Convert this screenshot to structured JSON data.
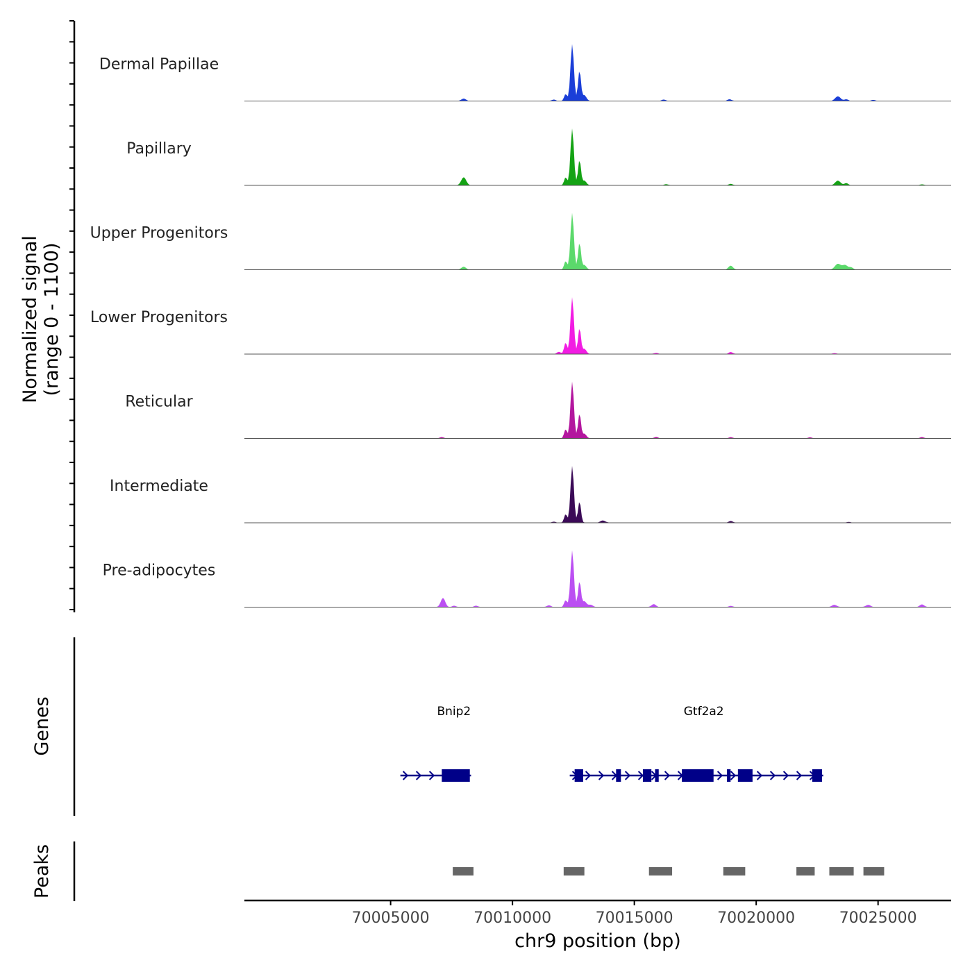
{
  "chart_data": {
    "type": "area",
    "title": "",
    "ylabel_line1": "Normalized signal",
    "ylabel_line2": "(range 0 - 1100)",
    "xlabel": "chr9 position (bp)",
    "xlim": [
      69999000,
      70028000
    ],
    "ylim": [
      0,
      1100
    ],
    "xticks": [
      70005000,
      70010000,
      70015000,
      70020000,
      70025000
    ],
    "xtick_labels": [
      "70005000",
      "70010000",
      "70015000",
      "70020000",
      "70025000"
    ],
    "tracks": [
      {
        "name": "Dermal Papillae",
        "color": "#1a3ed8",
        "peaks": [
          {
            "x": 70012450,
            "height": 1000,
            "width": 70
          },
          {
            "x": 70012750,
            "height": 540,
            "width": 60
          },
          {
            "x": 70012180,
            "height": 120,
            "width": 60
          },
          {
            "x": 70012950,
            "height": 100,
            "width": 80
          },
          {
            "x": 70008000,
            "height": 40,
            "width": 90
          },
          {
            "x": 70011700,
            "height": 25,
            "width": 80
          },
          {
            "x": 70016200,
            "height": 25,
            "width": 80
          },
          {
            "x": 70018900,
            "height": 30,
            "width": 80
          },
          {
            "x": 70023350,
            "height": 80,
            "width": 110
          },
          {
            "x": 70023700,
            "height": 30,
            "width": 80
          },
          {
            "x": 70024800,
            "height": 20,
            "width": 80
          }
        ]
      },
      {
        "name": "Papillary",
        "color": "#14a314",
        "peaks": [
          {
            "x": 70012450,
            "height": 1000,
            "width": 70
          },
          {
            "x": 70012750,
            "height": 450,
            "width": 60
          },
          {
            "x": 70012180,
            "height": 140,
            "width": 60
          },
          {
            "x": 70012950,
            "height": 80,
            "width": 80
          },
          {
            "x": 70008000,
            "height": 140,
            "width": 100
          },
          {
            "x": 70016300,
            "height": 20,
            "width": 80
          },
          {
            "x": 70018950,
            "height": 25,
            "width": 80
          },
          {
            "x": 70023350,
            "height": 80,
            "width": 110
          },
          {
            "x": 70023700,
            "height": 40,
            "width": 80
          },
          {
            "x": 70026800,
            "height": 15,
            "width": 80
          }
        ]
      },
      {
        "name": "Upper Progenitors",
        "color": "#5bd96b",
        "peaks": [
          {
            "x": 70012450,
            "height": 1000,
            "width": 70
          },
          {
            "x": 70012750,
            "height": 480,
            "width": 60
          },
          {
            "x": 70012180,
            "height": 150,
            "width": 60
          },
          {
            "x": 70012950,
            "height": 80,
            "width": 80
          },
          {
            "x": 70008000,
            "height": 50,
            "width": 90
          },
          {
            "x": 70018950,
            "height": 70,
            "width": 90
          },
          {
            "x": 70023350,
            "height": 100,
            "width": 120
          },
          {
            "x": 70023650,
            "height": 80,
            "width": 110
          },
          {
            "x": 70023900,
            "height": 40,
            "width": 80
          }
        ]
      },
      {
        "name": "Lower Progenitors",
        "color": "#f21ce3",
        "peaks": [
          {
            "x": 70012450,
            "height": 1000,
            "width": 70
          },
          {
            "x": 70012750,
            "height": 460,
            "width": 60
          },
          {
            "x": 70012180,
            "height": 200,
            "width": 60
          },
          {
            "x": 70012950,
            "height": 90,
            "width": 80
          },
          {
            "x": 70011900,
            "height": 40,
            "width": 80
          },
          {
            "x": 70015900,
            "height": 20,
            "width": 80
          },
          {
            "x": 70018950,
            "height": 35,
            "width": 80
          },
          {
            "x": 70023200,
            "height": 15,
            "width": 80
          }
        ]
      },
      {
        "name": "Reticular",
        "color": "#b3169e",
        "peaks": [
          {
            "x": 70012450,
            "height": 1000,
            "width": 70
          },
          {
            "x": 70012750,
            "height": 440,
            "width": 60
          },
          {
            "x": 70012180,
            "height": 160,
            "width": 60
          },
          {
            "x": 70012950,
            "height": 80,
            "width": 80
          },
          {
            "x": 70007100,
            "height": 20,
            "width": 80
          },
          {
            "x": 70015900,
            "height": 25,
            "width": 80
          },
          {
            "x": 70018950,
            "height": 20,
            "width": 80
          },
          {
            "x": 70022200,
            "height": 20,
            "width": 80
          },
          {
            "x": 70026800,
            "height": 20,
            "width": 80
          }
        ]
      },
      {
        "name": "Intermediate",
        "color": "#3b0a57",
        "peaks": [
          {
            "x": 70012450,
            "height": 1000,
            "width": 70
          },
          {
            "x": 70012750,
            "height": 380,
            "width": 60
          },
          {
            "x": 70012180,
            "height": 150,
            "width": 60
          },
          {
            "x": 70013700,
            "height": 40,
            "width": 100
          },
          {
            "x": 70011700,
            "height": 20,
            "width": 80
          },
          {
            "x": 70018950,
            "height": 30,
            "width": 80
          },
          {
            "x": 70023800,
            "height": 15,
            "width": 80
          }
        ]
      },
      {
        "name": "Pre-adipocytes",
        "color": "#bb4ff2",
        "peaks": [
          {
            "x": 70012450,
            "height": 1000,
            "width": 70
          },
          {
            "x": 70012750,
            "height": 460,
            "width": 60
          },
          {
            "x": 70012180,
            "height": 120,
            "width": 60
          },
          {
            "x": 70012950,
            "height": 100,
            "width": 80
          },
          {
            "x": 70007150,
            "height": 160,
            "width": 90
          },
          {
            "x": 70007600,
            "height": 25,
            "width": 80
          },
          {
            "x": 70008500,
            "height": 25,
            "width": 80
          },
          {
            "x": 70011500,
            "height": 30,
            "width": 80
          },
          {
            "x": 70013200,
            "height": 40,
            "width": 100
          },
          {
            "x": 70015800,
            "height": 50,
            "width": 90
          },
          {
            "x": 70018950,
            "height": 20,
            "width": 80
          },
          {
            "x": 70023200,
            "height": 40,
            "width": 100
          },
          {
            "x": 70024600,
            "height": 40,
            "width": 100
          },
          {
            "x": 70026800,
            "height": 45,
            "width": 90
          }
        ]
      }
    ],
    "genes_label": "Genes",
    "genes": [
      {
        "name": "Bnip2",
        "color": "#000088",
        "start": 70005400,
        "end": 70008300,
        "label_x": 70007600,
        "strand": "+",
        "exons": [
          [
            70007100,
            70008250
          ]
        ]
      },
      {
        "name": "Gtf2a2",
        "color": "#000088",
        "start": 70012350,
        "end": 70022750,
        "label_x": 70017850,
        "strand": "+",
        "exons": [
          [
            70012550,
            70012900
          ],
          [
            70014250,
            70014450
          ],
          [
            70015350,
            70015700
          ],
          [
            70015850,
            70016000
          ],
          [
            70016950,
            70018250
          ],
          [
            70018800,
            70018950
          ],
          [
            70019250,
            70019850
          ],
          [
            70022300,
            70022700
          ]
        ]
      }
    ],
    "peaks_label": "Peaks",
    "peak_regions": [
      [
        70007550,
        70008400
      ],
      [
        70012100,
        70012950
      ],
      [
        70015600,
        70016550
      ],
      [
        70018650,
        70019550
      ],
      [
        70021650,
        70022400
      ],
      [
        70023000,
        70024000
      ],
      [
        70024400,
        70025250
      ]
    ]
  }
}
